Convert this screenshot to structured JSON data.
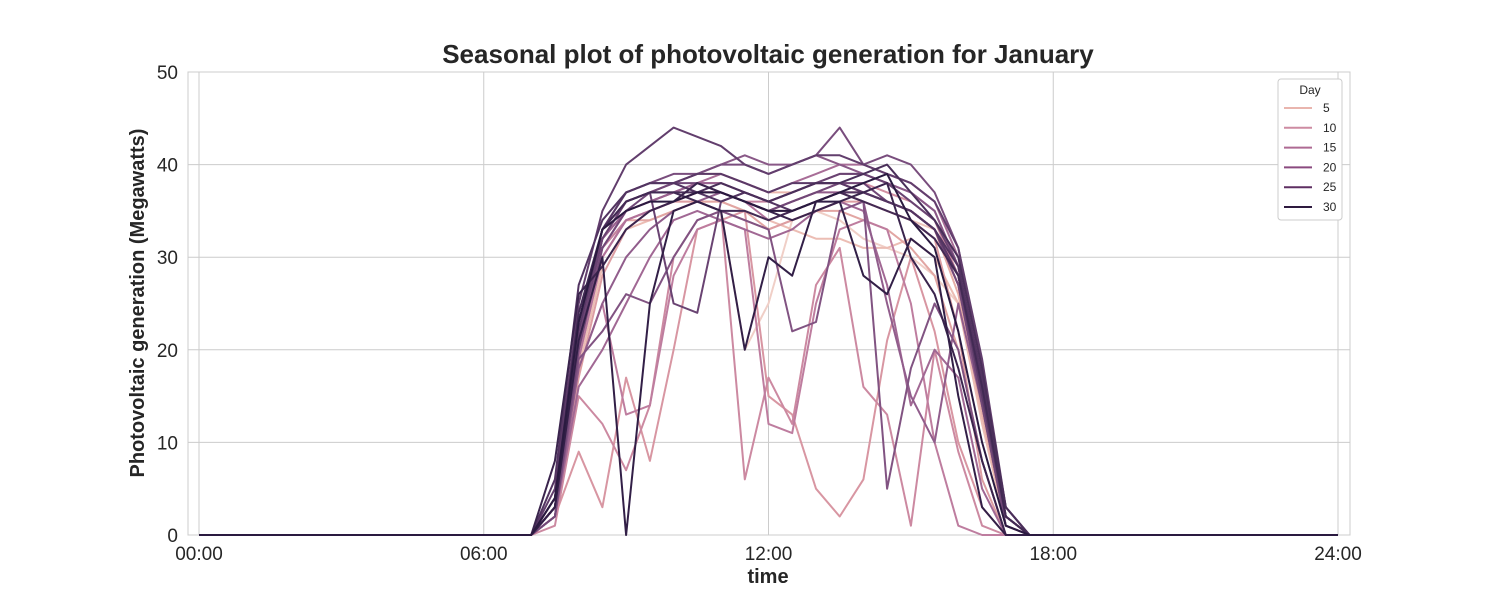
{
  "chart_data": {
    "type": "line",
    "title": "Seasonal plot of photovoltaic generation for January",
    "xlabel": "time",
    "ylabel": "Photovoltaic generation (Megawatts)",
    "xlim": [
      0,
      24
    ],
    "ylim": [
      0,
      50
    ],
    "x_ticks": [
      "00:00",
      "06:00",
      "12:00",
      "18:00",
      "24:00"
    ],
    "x_tick_values": [
      0,
      6,
      12,
      18,
      24
    ],
    "y_ticks": [
      0,
      10,
      20,
      30,
      40,
      50
    ],
    "grid": true,
    "legend": {
      "title": "Day",
      "placement": "top-right",
      "entries": [
        {
          "label": "5",
          "color": "#e9b5ae"
        },
        {
          "label": "10",
          "color": "#cd8ca2"
        },
        {
          "label": "15",
          "color": "#ae6a93"
        },
        {
          "label": "20",
          "color": "#8a4a7f"
        },
        {
          "label": "25",
          "color": "#5e2f62"
        },
        {
          "label": "30",
          "color": "#2e1a3f"
        }
      ]
    },
    "x": [
      7.0,
      7.5,
      8.0,
      8.5,
      9.0,
      9.5,
      10.0,
      10.5,
      11.0,
      11.5,
      12.0,
      12.5,
      13.0,
      13.5,
      14.0,
      14.5,
      15.0,
      15.5,
      16.0,
      16.5,
      17.0,
      17.5
    ],
    "series": [
      {
        "day": 1,
        "color": "#f0cfc7",
        "values": [
          0,
          2,
          20,
          30,
          34,
          35,
          36,
          36,
          35,
          20,
          25,
          34,
          35,
          34,
          32,
          31,
          30,
          28,
          25,
          15,
          2,
          0
        ]
      },
      {
        "day": 2,
        "color": "#eec6bd",
        "values": [
          0,
          3,
          21,
          31,
          35,
          36,
          37,
          38,
          37,
          36,
          35,
          36,
          37,
          37,
          36,
          35,
          34,
          33,
          28,
          16,
          2,
          0
        ]
      },
      {
        "day": 3,
        "color": "#ecbdb4",
        "values": [
          0,
          2,
          18,
          29,
          33,
          34,
          35,
          36,
          36,
          35,
          34,
          33,
          32,
          32,
          31,
          31,
          32,
          30,
          25,
          12,
          1,
          0
        ]
      },
      {
        "day": 4,
        "color": "#eab6ae",
        "values": [
          0,
          4,
          22,
          32,
          36,
          37,
          38,
          39,
          39,
          38,
          37,
          37,
          38,
          38,
          37,
          36,
          35,
          33,
          27,
          14,
          2,
          0
        ]
      },
      {
        "day": 5,
        "color": "#e6aea7",
        "values": [
          0,
          2,
          19,
          30,
          34,
          35,
          36,
          37,
          37,
          36,
          35,
          35,
          36,
          37,
          37,
          36,
          35,
          33,
          26,
          13,
          1,
          0
        ]
      },
      {
        "day": 6,
        "color": "#e2a6a3",
        "values": [
          0,
          3,
          20,
          31,
          34,
          34,
          35,
          36,
          36,
          35,
          33,
          34,
          35,
          35,
          34,
          33,
          31,
          28,
          20,
          8,
          0,
          0
        ]
      },
      {
        "day": 7,
        "color": "#dd9ea2",
        "values": [
          0,
          2,
          17,
          28,
          33,
          35,
          36,
          36,
          35,
          34,
          33,
          34,
          35,
          36,
          36,
          35,
          34,
          32,
          22,
          6,
          0,
          0
        ]
      },
      {
        "day": 8,
        "color": "#d896a2",
        "values": [
          0,
          2,
          9,
          3,
          17,
          8,
          20,
          33,
          34,
          35,
          15,
          13,
          5,
          2,
          6,
          21,
          30,
          22,
          10,
          3,
          0,
          0
        ]
      },
      {
        "day": 9,
        "color": "#d28fa2",
        "values": [
          0,
          3,
          20,
          30,
          34,
          35,
          36,
          37,
          37,
          36,
          35,
          36,
          37,
          38,
          38,
          37,
          36,
          34,
          28,
          15,
          2,
          0
        ]
      },
      {
        "day": 10,
        "color": "#cc89a1",
        "values": [
          0,
          1,
          15,
          12,
          7,
          14,
          30,
          34,
          35,
          6,
          17,
          12,
          27,
          31,
          16,
          13,
          1,
          20,
          9,
          1,
          0,
          0
        ]
      },
      {
        "day": 11,
        "color": "#c583a0",
        "values": [
          0,
          3,
          21,
          31,
          34,
          35,
          36,
          37,
          37,
          36,
          36,
          37,
          38,
          38,
          37,
          36,
          35,
          33,
          27,
          14,
          2,
          0
        ]
      },
      {
        "day": 12,
        "color": "#be7d9f",
        "values": [
          0,
          2,
          18,
          25,
          13,
          14,
          28,
          33,
          34,
          33,
          12,
          11,
          25,
          33,
          34,
          33,
          25,
          10,
          1,
          0,
          0,
          0
        ]
      },
      {
        "day": 13,
        "color": "#b7789d",
        "values": [
          0,
          3,
          22,
          32,
          35,
          36,
          37,
          38,
          38,
          37,
          36,
          37,
          38,
          39,
          39,
          38,
          37,
          35,
          29,
          16,
          2,
          0
        ]
      },
      {
        "day": 14,
        "color": "#b0729a",
        "values": [
          0,
          2,
          19,
          30,
          34,
          35,
          36,
          37,
          37,
          36,
          34,
          35,
          36,
          37,
          37,
          36,
          35,
          33,
          27,
          14,
          1,
          0
        ]
      },
      {
        "day": 15,
        "color": "#a86d97",
        "values": [
          0,
          3,
          20,
          31,
          35,
          36,
          37,
          38,
          39,
          38,
          37,
          38,
          39,
          40,
          40,
          39,
          38,
          36,
          30,
          17,
          2,
          0
        ]
      },
      {
        "day": 16,
        "color": "#a16894",
        "values": [
          0,
          2,
          16,
          20,
          25,
          30,
          34,
          35,
          34,
          33,
          32,
          33,
          35,
          36,
          35,
          27,
          14,
          20,
          17,
          5,
          0,
          0
        ]
      },
      {
        "day": 17,
        "color": "#996290",
        "values": [
          0,
          3,
          21,
          32,
          35,
          36,
          37,
          38,
          38,
          37,
          36,
          37,
          38,
          38,
          37,
          36,
          35,
          33,
          28,
          15,
          2,
          0
        ]
      },
      {
        "day": 18,
        "color": "#915d8c",
        "values": [
          0,
          2,
          18,
          25,
          30,
          33,
          35,
          36,
          37,
          36,
          35,
          36,
          37,
          37,
          36,
          25,
          15,
          10,
          25,
          14,
          1,
          0
        ]
      },
      {
        "day": 19,
        "color": "#895887",
        "values": [
          0,
          3,
          22,
          32,
          36,
          37,
          38,
          39,
          40,
          41,
          40,
          40,
          41,
          40,
          39,
          38,
          37,
          35,
          29,
          16,
          2,
          0
        ]
      },
      {
        "day": 20,
        "color": "#815382",
        "values": [
          0,
          2,
          19,
          22,
          26,
          25,
          30,
          34,
          35,
          34,
          33,
          22,
          23,
          35,
          36,
          5,
          18,
          25,
          20,
          8,
          0,
          0
        ]
      },
      {
        "day": 21,
        "color": "#794d7d",
        "values": [
          0,
          4,
          23,
          33,
          37,
          38,
          39,
          39,
          40,
          40,
          39,
          40,
          41,
          44,
          40,
          41,
          40,
          37,
          31,
          18,
          3,
          0
        ]
      },
      {
        "day": 22,
        "color": "#714878",
        "values": [
          0,
          2,
          20,
          31,
          35,
          37,
          38,
          38,
          37,
          36,
          35,
          36,
          37,
          38,
          38,
          36,
          35,
          33,
          27,
          14,
          1,
          0
        ]
      },
      {
        "day": 23,
        "color": "#694372",
        "values": [
          0,
          3,
          21,
          32,
          36,
          37,
          25,
          24,
          36,
          37,
          36,
          37,
          38,
          39,
          39,
          38,
          36,
          34,
          29,
          16,
          2,
          0
        ]
      },
      {
        "day": 24,
        "color": "#623e6d",
        "values": [
          0,
          5,
          25,
          35,
          40,
          42,
          44,
          43,
          42,
          40,
          39,
          40,
          41,
          41,
          40,
          39,
          38,
          36,
          31,
          19,
          3,
          0
        ]
      },
      {
        "day": 25,
        "color": "#5a3967",
        "values": [
          0,
          3,
          22,
          33,
          37,
          38,
          38,
          39,
          39,
          38,
          37,
          38,
          38,
          38,
          37,
          36,
          35,
          33,
          28,
          15,
          2,
          0
        ]
      },
      {
        "day": 26,
        "color": "#523461",
        "values": [
          0,
          6,
          27,
          34,
          37,
          38,
          38,
          37,
          36,
          37,
          36,
          35,
          36,
          37,
          37,
          36,
          35,
          33,
          29,
          17,
          2,
          0
        ]
      },
      {
        "day": 27,
        "color": "#4a2f5a",
        "values": [
          0,
          3,
          23,
          33,
          36,
          37,
          37,
          37,
          38,
          37,
          36,
          37,
          38,
          38,
          39,
          40,
          37,
          34,
          30,
          18,
          3,
          0
        ]
      },
      {
        "day": 28,
        "color": "#422a54",
        "values": [
          0,
          4,
          24,
          33,
          36,
          37,
          37,
          36,
          35,
          35,
          34,
          35,
          36,
          37,
          36,
          35,
          34,
          32,
          28,
          16,
          2,
          0
        ]
      },
      {
        "day": 29,
        "color": "#3a244d",
        "values": [
          0,
          8,
          26,
          29,
          33,
          35,
          36,
          38,
          37,
          36,
          35,
          34,
          35,
          36,
          37,
          38,
          30,
          26,
          18,
          8,
          0,
          0
        ]
      },
      {
        "day": 30,
        "color": "#321f47",
        "values": [
          0,
          3,
          21,
          30,
          0,
          25,
          35,
          36,
          35,
          20,
          30,
          28,
          36,
          36,
          28,
          26,
          32,
          30,
          15,
          3,
          0,
          0
        ]
      },
      {
        "day": 31,
        "color": "#2a1a40",
        "values": [
          0,
          4,
          23,
          33,
          35,
          36,
          36,
          37,
          37,
          36,
          35,
          35,
          36,
          37,
          38,
          39,
          34,
          31,
          22,
          10,
          1,
          0
        ]
      }
    ]
  }
}
